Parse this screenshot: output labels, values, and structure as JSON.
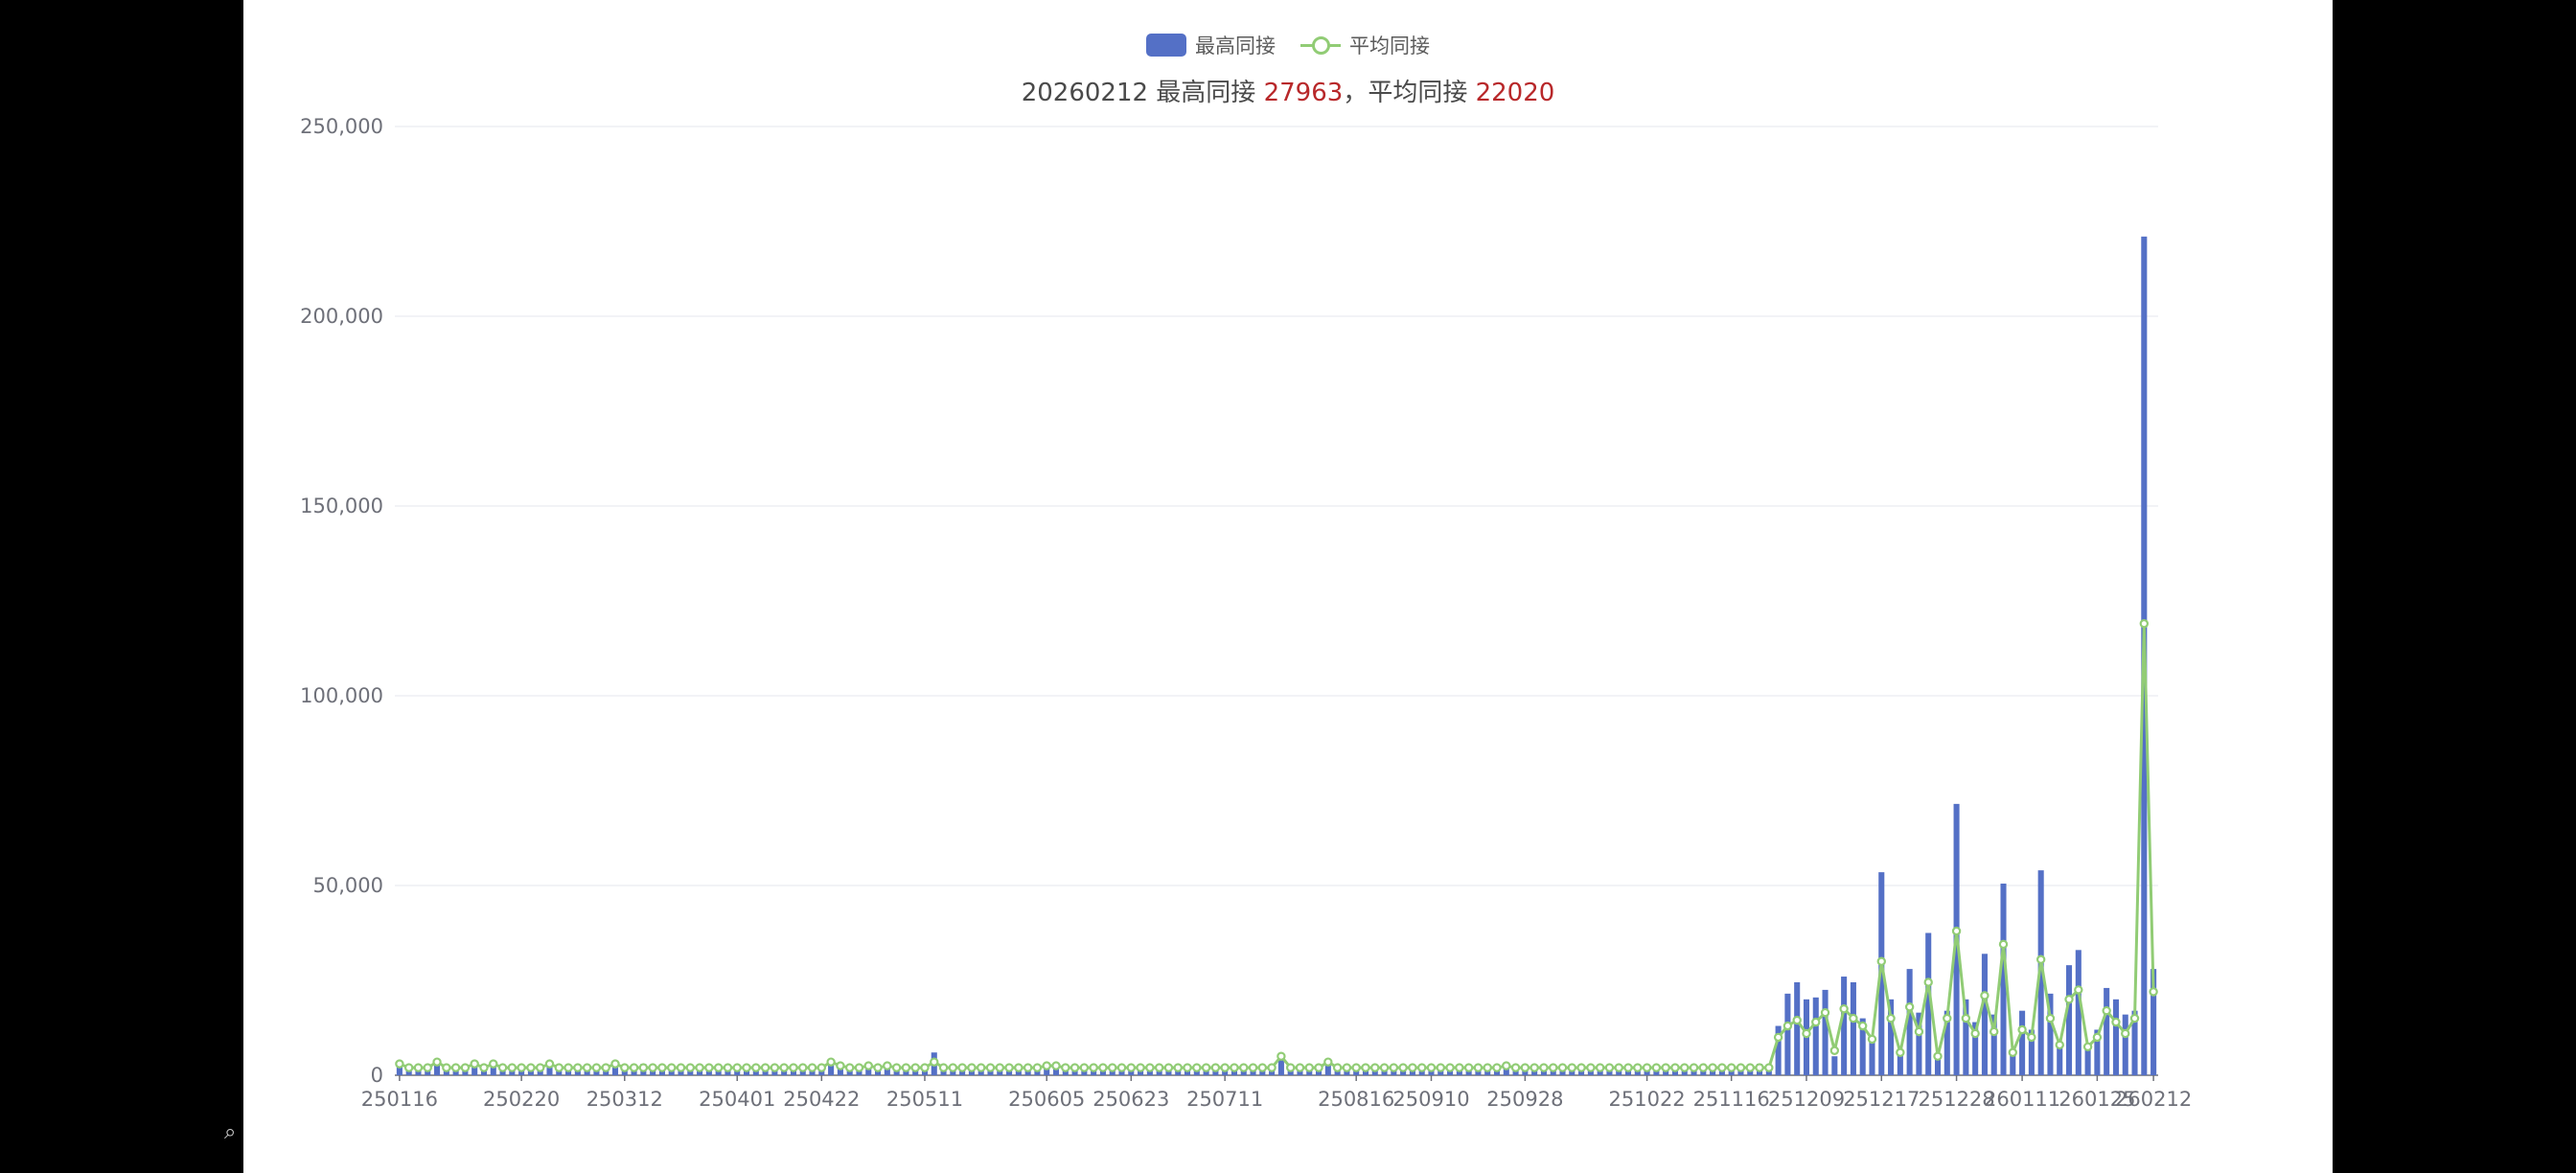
{
  "legend": {
    "bar_label": "最高同接",
    "line_label": "平均同接",
    "bar_color": "#5470c6",
    "line_color": "#91cc75"
  },
  "title": {
    "date": "20260212",
    "max_label": "最高同接",
    "max_value": "27963",
    "sep": "，",
    "avg_label": "平均同接",
    "avg_value": "22020",
    "highlight_color": "#b8282a"
  },
  "chart_data": {
    "type": "bar",
    "title": "20260212 最高同接 27963，平均同接 22020",
    "xlabel": "",
    "ylabel": "",
    "ylim": [
      0,
      250000
    ],
    "yticks": [
      0,
      50000,
      100000,
      150000,
      200000,
      250000
    ],
    "ytick_labels": [
      "0",
      "50,000",
      "100,000",
      "150,000",
      "200,000",
      "250,000"
    ],
    "xtick_labels": [
      "250116",
      "250220",
      "250312",
      "250401",
      "250422",
      "250511",
      "250605",
      "250623",
      "250711",
      "250816",
      "250910",
      "250928",
      "251022",
      "251116",
      "251209",
      "251217",
      "251228",
      "260111",
      "260125",
      "260212"
    ],
    "grid": true,
    "legend_position": "top-center",
    "series": [
      {
        "name": "最高同接",
        "type": "bar",
        "values": [
          3000,
          2000,
          2500,
          2000,
          4000,
          2000,
          2000,
          2500,
          2500,
          2000,
          3000,
          2500,
          2500,
          2000,
          2500,
          2000,
          3000,
          2000,
          2000,
          2000,
          2000,
          2500,
          2000,
          2500,
          2000,
          2500,
          3000,
          2000,
          2500,
          2000,
          2000,
          2000,
          2000,
          2500,
          2000,
          2000,
          2000,
          2000,
          2000,
          2000,
          2500,
          2000,
          2000,
          2000,
          2000,
          2000,
          4000,
          2000,
          2000,
          2000,
          2000,
          2500,
          2000,
          2000,
          2000,
          2000,
          2000,
          6000,
          2500,
          2000,
          2000,
          2000,
          2000,
          2000,
          2000,
          2500,
          2000,
          2000,
          2000,
          2000,
          2500,
          2000,
          2000,
          2000,
          2000,
          2000,
          2000,
          2000,
          2000,
          2000,
          2000,
          2000,
          2000,
          2500,
          2000,
          2000,
          2000,
          2000,
          2000,
          2000,
          2500,
          2000,
          2000,
          2000,
          5000,
          2000,
          2000,
          2000,
          2000,
          4000,
          2000,
          2000,
          2000,
          2000,
          2500,
          2000,
          2000,
          2000,
          2000,
          2000,
          2000,
          2000,
          2000,
          2000,
          2000,
          2000,
          2000,
          2000,
          2500,
          2000,
          2000,
          2000,
          2000,
          2000,
          2500,
          2000,
          2000,
          2000,
          2000,
          2000,
          2000,
          2500,
          2000,
          2000,
          2000,
          2000,
          2000,
          2000,
          2500,
          2000,
          2000,
          2000,
          2000,
          2000,
          2000,
          3000,
          2000,
          13000,
          21500,
          24500,
          20000,
          20500,
          22500,
          5000,
          26000,
          24500,
          15000,
          10000,
          53500,
          20000,
          6000,
          28000,
          16500,
          37500,
          5000,
          17000,
          71500,
          20000,
          14000,
          32000,
          16000,
          50500,
          6000,
          17000,
          12000,
          54000,
          21500,
          8000,
          29000,
          33000,
          7000,
          12000,
          23000,
          20000,
          16000,
          17000,
          221000,
          28000
        ],
        "color": "#5470c6"
      },
      {
        "name": "平均同接",
        "type": "line",
        "values": [
          3000,
          2000,
          2000,
          2000,
          3500,
          2000,
          2000,
          2000,
          3000,
          2000,
          3000,
          2000,
          2000,
          2000,
          2000,
          2000,
          3000,
          2000,
          2000,
          2000,
          2000,
          2000,
          2000,
          3000,
          2000,
          2000,
          2000,
          2000,
          2000,
          2000,
          2000,
          2000,
          2000,
          2000,
          2000,
          2000,
          2000,
          2000,
          2000,
          2000,
          2000,
          2000,
          2000,
          2000,
          2000,
          2000,
          3500,
          2500,
          2000,
          2000,
          2500,
          2000,
          2500,
          2000,
          2000,
          2000,
          2000,
          3500,
          2000,
          2000,
          2000,
          2000,
          2000,
          2000,
          2000,
          2000,
          2000,
          2000,
          2000,
          2500,
          2500,
          2000,
          2000,
          2000,
          2000,
          2000,
          2000,
          2000,
          2000,
          2000,
          2000,
          2000,
          2000,
          2000,
          2000,
          2000,
          2000,
          2000,
          2000,
          2000,
          2000,
          2000,
          2000,
          2000,
          5000,
          2000,
          2000,
          2000,
          2000,
          3500,
          2000,
          2000,
          2000,
          2000,
          2000,
          2000,
          2000,
          2000,
          2000,
          2000,
          2000,
          2000,
          2000,
          2000,
          2000,
          2000,
          2000,
          2000,
          2500,
          2000,
          2000,
          2000,
          2000,
          2000,
          2000,
          2000,
          2000,
          2000,
          2000,
          2000,
          2000,
          2000,
          2000,
          2000,
          2000,
          2000,
          2000,
          2000,
          2000,
          2000,
          2000,
          2000,
          2000,
          2000,
          2000,
          2000,
          2000,
          10000,
          13000,
          14500,
          11000,
          14000,
          16500,
          6500,
          17500,
          15000,
          13000,
          9500,
          30000,
          15000,
          6000,
          18000,
          11500,
          24500,
          5000,
          15000,
          38000,
          15000,
          11000,
          21000,
          11500,
          34500,
          6000,
          12000,
          10000,
          30500,
          15000,
          8000,
          20000,
          22500,
          7500,
          10000,
          17000,
          14000,
          11000,
          15000,
          119000,
          22000
        ],
        "color": "#91cc75"
      }
    ]
  }
}
